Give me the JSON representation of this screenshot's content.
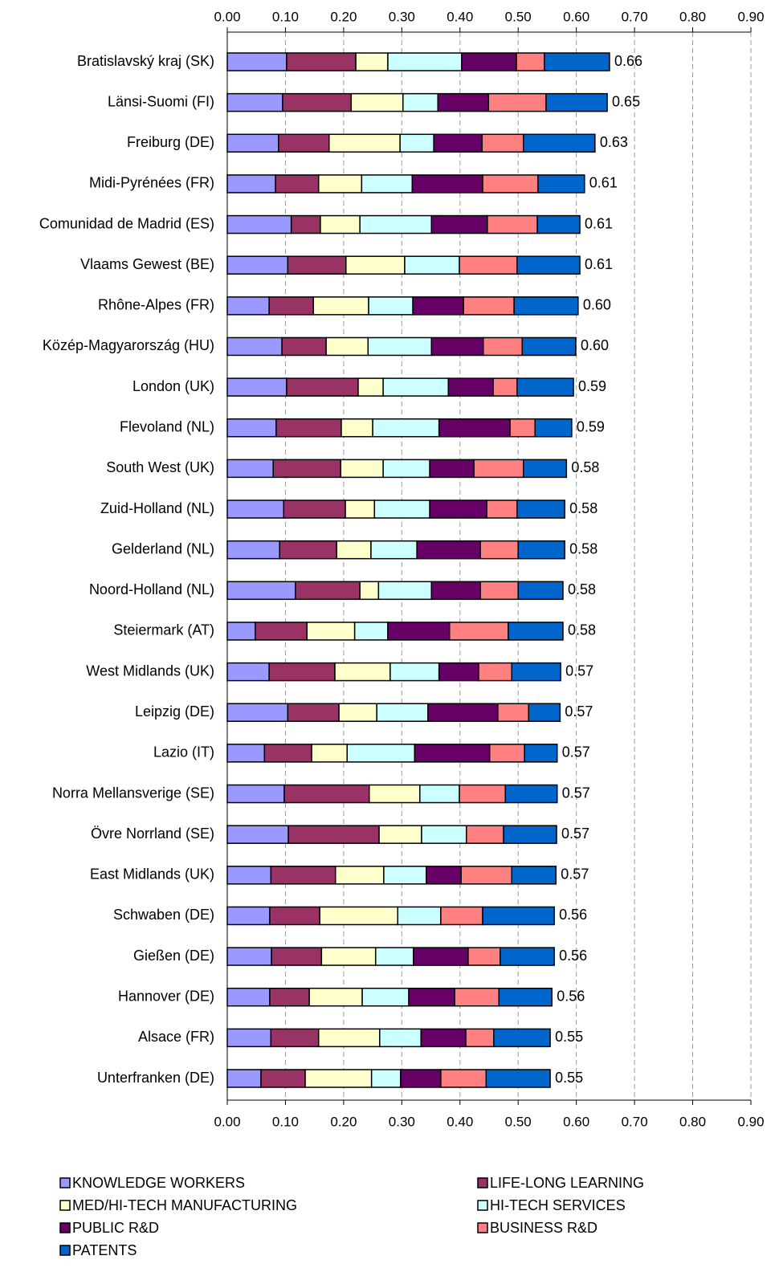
{
  "chart_data": {
    "type": "bar",
    "orientation": "horizontal",
    "stacked": true,
    "categories": [
      "Bratislavský kraj (SK)",
      "Länsi-Suomi (FI)",
      "Freiburg (DE)",
      "Midi-Pyrénées (FR)",
      "Comunidad de Madrid (ES)",
      "Vlaams Gewest (BE)",
      "Rhône-Alpes (FR)",
      "Közép-Magyarország (HU)",
      "London (UK)",
      "Flevoland (NL)",
      "South West (UK)",
      "Zuid-Holland (NL)",
      "Gelderland (NL)",
      "Noord-Holland (NL)",
      "Steiermark (AT)",
      "West Midlands (UK)",
      "Leipzig (DE)",
      "Lazio (IT)",
      "Norra Mellansverige (SE)",
      "Övre Norrland (SE)",
      "East Midlands (UK)",
      "Schwaben (DE)",
      "Gießen (DE)",
      "Hannover (DE)",
      "Alsace (FR)",
      "Unterfranken (DE)"
    ],
    "series": [
      {
        "name": "KNOWLEDGE WORKERS",
        "color": "#9999ff",
        "values": [
          0.102,
          0.095,
          0.088,
          0.083,
          0.11,
          0.104,
          0.072,
          0.094,
          0.102,
          0.084,
          0.079,
          0.097,
          0.09,
          0.117,
          0.048,
          0.072,
          0.104,
          0.064,
          0.098,
          0.105,
          0.075,
          0.073,
          0.076,
          0.073,
          0.075,
          0.058
        ]
      },
      {
        "name": "LIFE-LONG LEARNING",
        "color": "#993366",
        "values": [
          0.119,
          0.118,
          0.087,
          0.074,
          0.05,
          0.1,
          0.076,
          0.076,
          0.123,
          0.112,
          0.116,
          0.106,
          0.098,
          0.111,
          0.089,
          0.113,
          0.088,
          0.081,
          0.146,
          0.156,
          0.111,
          0.086,
          0.086,
          0.068,
          0.082,
          0.076
        ]
      },
      {
        "name": "MED/HI-TECH MANUFACTURING",
        "color": "#ffffcc",
        "values": [
          0.055,
          0.089,
          0.122,
          0.074,
          0.068,
          0.101,
          0.095,
          0.072,
          0.043,
          0.054,
          0.073,
          0.05,
          0.059,
          0.032,
          0.082,
          0.095,
          0.065,
          0.061,
          0.087,
          0.073,
          0.083,
          0.134,
          0.093,
          0.091,
          0.105,
          0.114
        ]
      },
      {
        "name": "HI-TECH SERVICES",
        "color": "#ccffff",
        "values": [
          0.127,
          0.06,
          0.058,
          0.087,
          0.123,
          0.094,
          0.076,
          0.109,
          0.112,
          0.114,
          0.08,
          0.095,
          0.079,
          0.091,
          0.057,
          0.084,
          0.088,
          0.116,
          0.068,
          0.077,
          0.073,
          0.074,
          0.065,
          0.08,
          0.071,
          0.05
        ]
      },
      {
        "name": "PUBLIC R&D",
        "color": "#660066",
        "values": [
          0.094,
          0.087,
          0.083,
          0.121,
          0.096,
          0,
          0.087,
          0.089,
          0.077,
          0.122,
          0.076,
          0.098,
          0.109,
          0.084,
          0.106,
          0.068,
          0.12,
          0.129,
          0,
          0,
          0.06,
          0,
          0.094,
          0.079,
          0.077,
          0.069
        ]
      },
      {
        "name": "BUSINESS R&D",
        "color": "#ff8080",
        "values": [
          0.048,
          0.099,
          0.071,
          0.095,
          0.086,
          0.099,
          0.087,
          0.067,
          0.041,
          0.043,
          0.085,
          0.052,
          0.065,
          0.065,
          0.101,
          0.057,
          0.053,
          0.06,
          0.079,
          0.064,
          0.087,
          0.072,
          0.055,
          0.076,
          0.048,
          0.078
        ]
      },
      {
        "name": "PATENTS",
        "color": "#0066cc",
        "values": [
          0.112,
          0.105,
          0.123,
          0.08,
          0.073,
          0.108,
          0.11,
          0.092,
          0.097,
          0.063,
          0.074,
          0.082,
          0.08,
          0.077,
          0.094,
          0.084,
          0.054,
          0.056,
          0.089,
          0.091,
          0.076,
          0.123,
          0.093,
          0.091,
          0.097,
          0.11
        ]
      }
    ],
    "totals": [
      0.66,
      0.65,
      0.63,
      0.61,
      0.61,
      0.61,
      0.6,
      0.6,
      0.59,
      0.59,
      0.58,
      0.58,
      0.58,
      0.58,
      0.58,
      0.57,
      0.57,
      0.57,
      0.57,
      0.57,
      0.57,
      0.56,
      0.56,
      0.56,
      0.55,
      0.55
    ],
    "total_labels": [
      "0.66",
      "0.65",
      "0.63",
      "0.61",
      "0.61",
      "0.61",
      "0.60",
      "0.60",
      "0.59",
      "0.59",
      "0.58",
      "0.58",
      "0.58",
      "0.58",
      "0.58",
      "0.57",
      "0.57",
      "0.57",
      "0.57",
      "0.57",
      "0.57",
      "0.56",
      "0.56",
      "0.56",
      "0.55",
      "0.55"
    ],
    "xlim": [
      0,
      0.9
    ],
    "xticks": [
      {
        "value": 0,
        "label": "0.00"
      },
      {
        "value": 0.1,
        "label": "0.10"
      },
      {
        "value": 0.2,
        "label": "0.20"
      },
      {
        "value": 0.3,
        "label": "0.30"
      },
      {
        "value": 0.4,
        "label": "0.40"
      },
      {
        "value": 0.5,
        "label": "0.50"
      },
      {
        "value": 0.6,
        "label": "0.60"
      },
      {
        "value": 0.7,
        "label": "0.70"
      },
      {
        "value": 0.8,
        "label": "0.80"
      },
      {
        "value": 0.9,
        "label": "0.90"
      }
    ],
    "grid": true,
    "legend": "bottom"
  }
}
